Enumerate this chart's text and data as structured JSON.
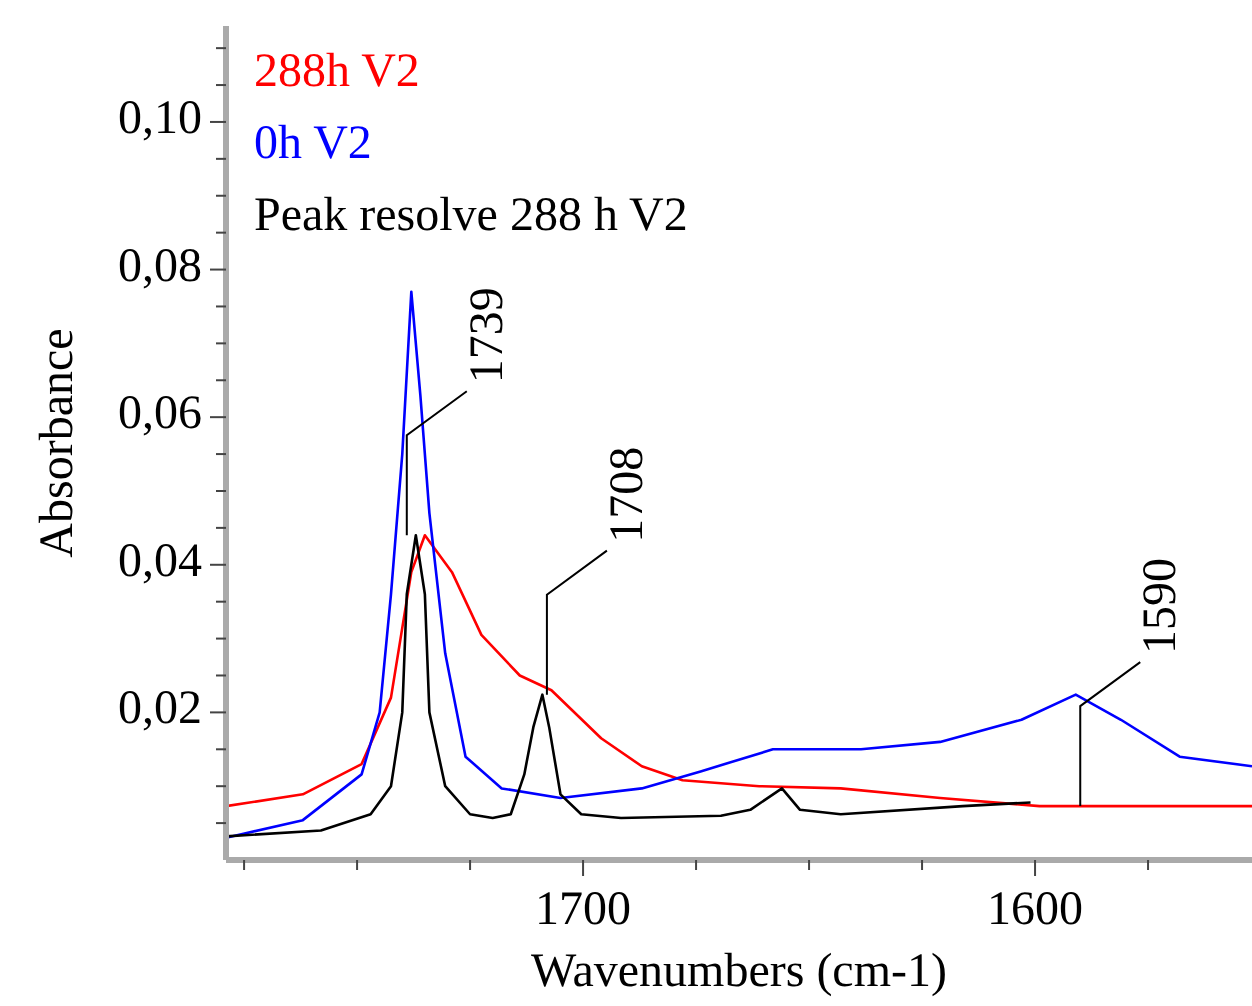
{
  "chart_data": {
    "type": "line",
    "xlabel": "Wavenumbers (cm-1)",
    "ylabel": "Absorbance",
    "xlim": [
      1779,
      1552
    ],
    "ylim": [
      0,
      0.113
    ],
    "xticks": [
      {
        "value": 1775,
        "label": null
      },
      {
        "value": 1750,
        "label": null
      },
      {
        "value": 1725,
        "label": null
      },
      1700,
      {
        "value": 1675,
        "label": null
      },
      {
        "value": 1650,
        "label": null
      },
      {
        "value": 1625,
        "label": null
      },
      1600,
      {
        "value": 1575,
        "label": null
      }
    ],
    "yticks": [
      {
        "value": 0.005,
        "label": null
      },
      {
        "value": 0.01,
        "label": null
      },
      {
        "value": 0.015,
        "label": null
      },
      {
        "value": 0.02,
        "label": "0,02"
      },
      {
        "value": 0.025,
        "label": null
      },
      {
        "value": 0.03,
        "label": null
      },
      {
        "value": 0.035,
        "label": null
      },
      {
        "value": 0.04,
        "label": "0,04"
      },
      {
        "value": 0.045,
        "label": null
      },
      {
        "value": 0.05,
        "label": null
      },
      {
        "value": 0.055,
        "label": null
      },
      {
        "value": 0.06,
        "label": "0,06"
      },
      {
        "value": 0.065,
        "label": null
      },
      {
        "value": 0.07,
        "label": null
      },
      {
        "value": 0.075,
        "label": null
      },
      {
        "value": 0.08,
        "label": "0,08"
      },
      {
        "value": 0.085,
        "label": null
      },
      {
        "value": 0.09,
        "label": null
      },
      {
        "value": 0.095,
        "label": null
      },
      {
        "value": 0.1,
        "label": "0,10"
      },
      {
        "value": 0.105,
        "label": null
      },
      {
        "value": 0.11,
        "label": null
      }
    ],
    "grid": false,
    "legend": "top left",
    "marker": "none",
    "line_style": "solid",
    "series": [
      {
        "name": "288h V2",
        "color": "#ff0000",
        "x": [
          1779,
          1762,
          1749,
          1742.5,
          1738,
          1735,
          1729,
          1722.5,
          1714,
          1707,
          1696,
          1687,
          1678,
          1661,
          1643,
          1621,
          1599,
          1552
        ],
        "values": [
          0.0073,
          0.0089,
          0.013,
          0.022,
          0.039,
          0.044,
          0.039,
          0.0305,
          0.025,
          0.023,
          0.0165,
          0.0127,
          0.0108,
          0.01,
          0.0097,
          0.0084,
          0.0073,
          0.0073
        ]
      },
      {
        "name": "0h V2",
        "color": "#0000ff",
        "x": [
          1779,
          1762,
          1749,
          1745,
          1742.5,
          1740,
          1738,
          1736,
          1734,
          1730.5,
          1726,
          1718,
          1705,
          1687,
          1674,
          1658,
          1638.5,
          1621,
          1603,
          1591,
          1581,
          1568,
          1552
        ],
        "values": [
          0.003,
          0.0054,
          0.0116,
          0.02,
          0.036,
          0.055,
          0.077,
          0.063,
          0.047,
          0.028,
          0.014,
          0.0097,
          0.0084,
          0.0097,
          0.012,
          0.015,
          0.015,
          0.016,
          0.019,
          0.0224,
          0.019,
          0.014,
          0.0127
        ]
      },
      {
        "name": "Peak resolve 288 h V2",
        "color": "#000000",
        "x": [
          1779,
          1758,
          1747,
          1742.5,
          1740,
          1739,
          1737,
          1735,
          1734,
          1730.5,
          1725,
          1720,
          1716,
          1713,
          1711,
          1709,
          1707.5,
          1705,
          1700.4,
          1691.6,
          1669.5,
          1663,
          1656,
          1652,
          1643,
          1616,
          1601
        ],
        "values": [
          0.0032,
          0.004,
          0.0062,
          0.01,
          0.02,
          0.036,
          0.044,
          0.036,
          0.02,
          0.01,
          0.0062,
          0.0057,
          0.0062,
          0.0116,
          0.018,
          0.0224,
          0.018,
          0.0089,
          0.0062,
          0.0057,
          0.006,
          0.0068,
          0.0097,
          0.0068,
          0.0062,
          0.0073,
          0.0078
        ]
      }
    ],
    "annotations": [
      {
        "text": "1739",
        "x": 1739,
        "y": 0.044
      },
      {
        "text": "1708",
        "x": 1708,
        "y": 0.0224
      },
      {
        "text": "1590",
        "x": 1590,
        "y": 0.0073
      }
    ]
  }
}
